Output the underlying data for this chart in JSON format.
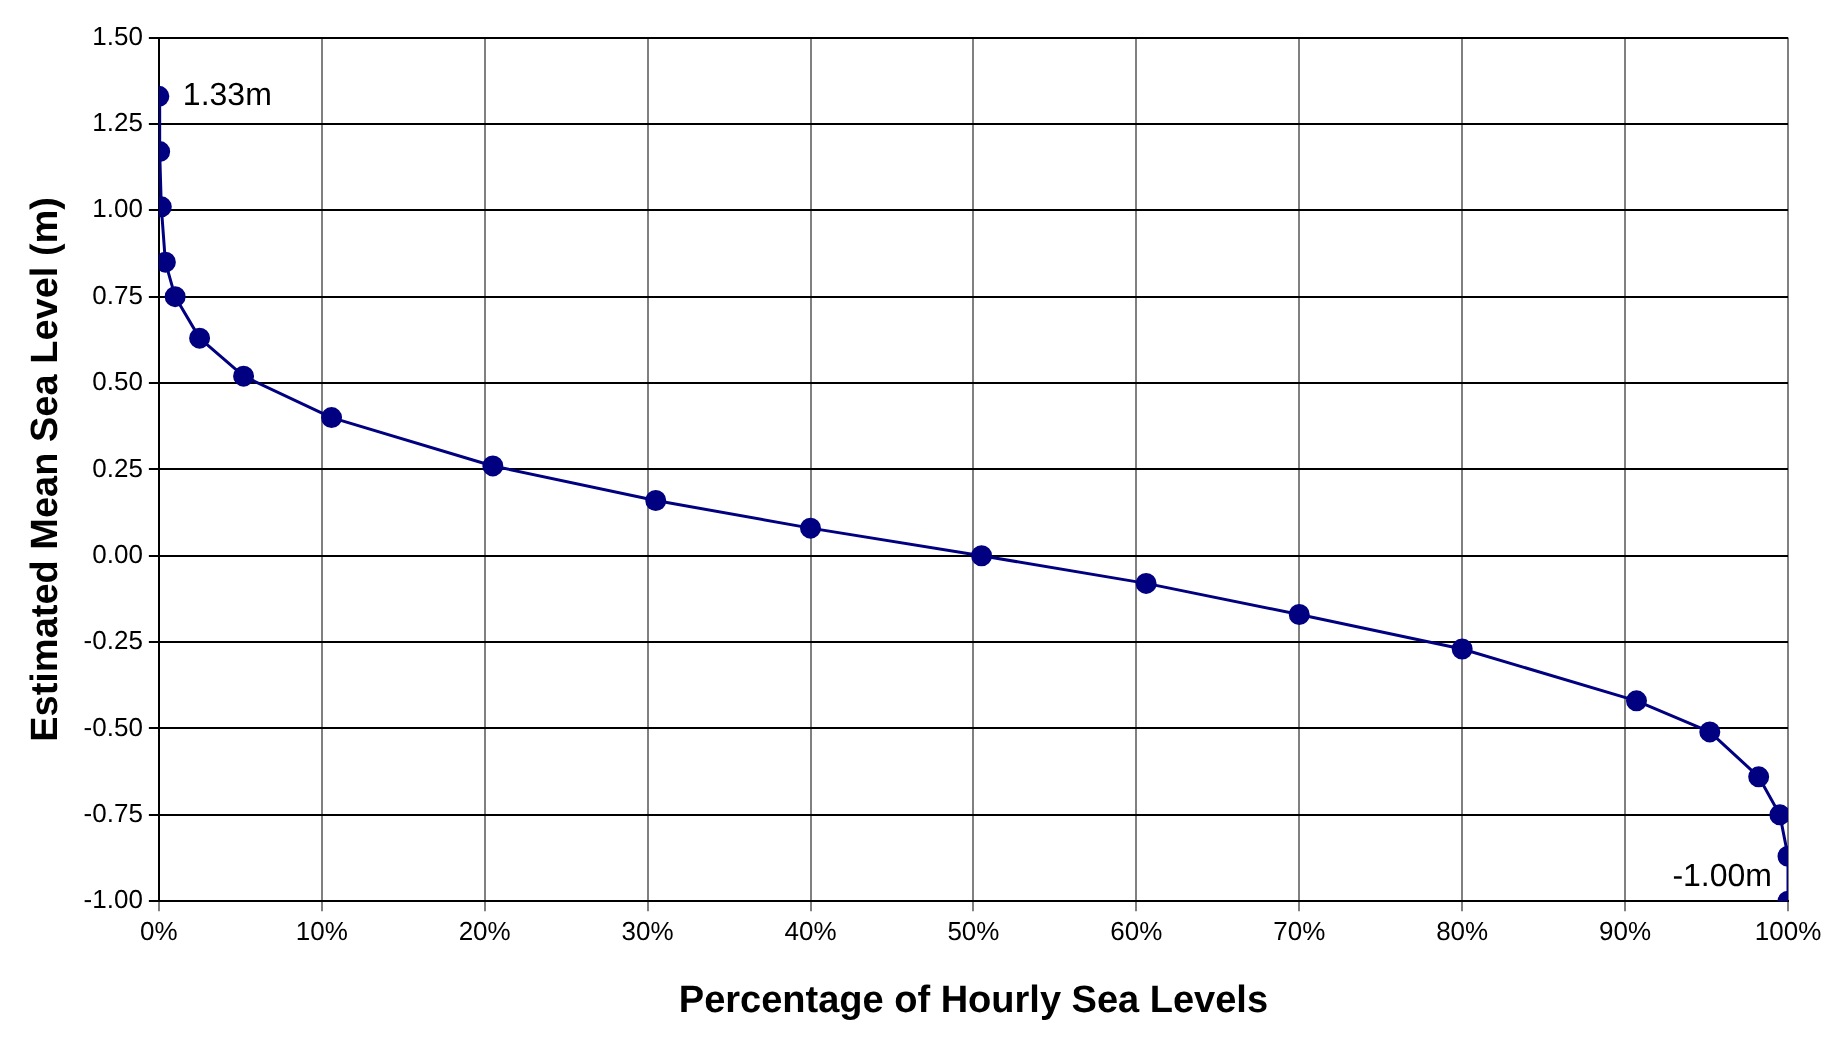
{
  "chart_data": {
    "type": "line",
    "xlabel": "Percentage of Hourly Sea Levels",
    "ylabel": "Estimated Mean Sea Level (m)",
    "x": [
      0,
      0.05,
      0.15,
      0.4,
      1,
      2.5,
      5.2,
      10.6,
      20.5,
      30.5,
      40,
      50.5,
      60.6,
      70,
      80,
      90.7,
      95.2,
      98.2,
      99.5,
      100,
      100
    ],
    "series": [
      {
        "color": "#000080",
        "values": [
          1.33,
          1.17,
          1.01,
          0.85,
          0.75,
          0.63,
          0.52,
          0.4,
          0.26,
          0.16,
          0.08,
          0,
          -0.08,
          -0.17,
          -0.27,
          -0.42,
          -0.51,
          -0.64,
          -0.75,
          -0.87,
          -1
        ]
      }
    ],
    "xlim": [
      0,
      100
    ],
    "ylim": [
      -1,
      1.5
    ],
    "xticks": [
      {
        "value": 0,
        "label": "0%"
      },
      {
        "value": 10,
        "label": "10%"
      },
      {
        "value": 20,
        "label": "20%"
      },
      {
        "value": 30,
        "label": "30%"
      },
      {
        "value": 40,
        "label": "40%"
      },
      {
        "value": 50,
        "label": "50%"
      },
      {
        "value": 60,
        "label": "60%"
      },
      {
        "value": 70,
        "label": "70%"
      },
      {
        "value": 80,
        "label": "80%"
      },
      {
        "value": 90,
        "label": "90%"
      },
      {
        "value": 100,
        "label": "100%"
      }
    ],
    "yticks": [
      {
        "value": -1,
        "label": "-1.00"
      },
      {
        "value": -0.75,
        "label": "-0.75"
      },
      {
        "value": -0.5,
        "label": "-0.50"
      },
      {
        "value": -0.25,
        "label": "-0.25"
      },
      {
        "value": 0,
        "label": "0.00"
      },
      {
        "value": 0.25,
        "label": "0.25"
      },
      {
        "value": 0.5,
        "label": "0.50"
      },
      {
        "value": 0.75,
        "label": "0.75"
      },
      {
        "value": 1,
        "label": "1.00"
      },
      {
        "value": 1.25,
        "label": "1.25"
      },
      {
        "value": 1.5,
        "label": "1.50"
      }
    ],
    "annotations": [
      {
        "text": "1.33m",
        "x": 0,
        "y": 1.33
      },
      {
        "text": "-1.00m",
        "x": 100,
        "y": -1
      }
    ],
    "grid": true,
    "legend": false,
    "marker": "circle",
    "line_style": "solid"
  }
}
